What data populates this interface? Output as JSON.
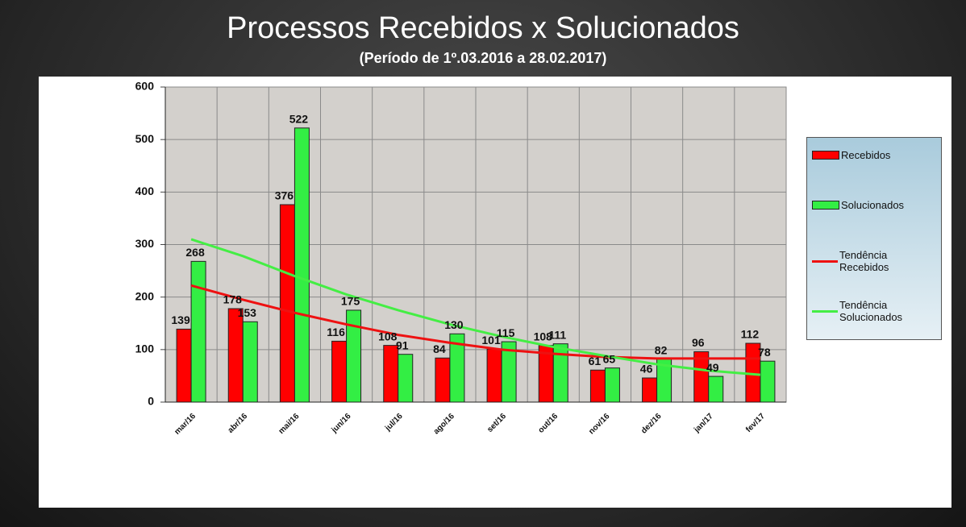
{
  "chart_data": {
    "type": "bar",
    "title": "Processos Recebidos x Solucionados",
    "subtitle": "(Período de 1º.03.2016  a  28.02.2017)",
    "categories": [
      "mar/16",
      "abr/16",
      "mai/16",
      "jun/16",
      "jul/16",
      "ago/16",
      "set/16",
      "out/16",
      "nov/16",
      "dez/16",
      "jan/17",
      "fev/17"
    ],
    "series": [
      {
        "name": "Recebidos",
        "color": "#ff0000",
        "type": "bar",
        "values": [
          139,
          178,
          376,
          116,
          108,
          84,
          101,
          108,
          61,
          46,
          96,
          112
        ]
      },
      {
        "name": "Solucionados",
        "color": "#33ee44",
        "type": "bar",
        "values": [
          268,
          153,
          522,
          175,
          91,
          130,
          115,
          111,
          65,
          82,
          49,
          78
        ]
      },
      {
        "name": "Tendência Recebidos",
        "color": "#ee1111",
        "type": "line",
        "values": [
          222,
          195,
          170,
          148,
          128,
          113,
          100,
          92,
          86,
          83,
          83,
          83
        ]
      },
      {
        "name": "Tendência Solucionados",
        "color": "#44ee44",
        "type": "line",
        "values": [
          310,
          278,
          240,
          205,
          175,
          148,
          125,
          105,
          88,
          72,
          60,
          52
        ]
      }
    ],
    "ylim": [
      0,
      600
    ],
    "yticks": [
      0,
      100,
      200,
      300,
      400,
      500,
      600
    ],
    "grid": true,
    "legend": "right"
  }
}
